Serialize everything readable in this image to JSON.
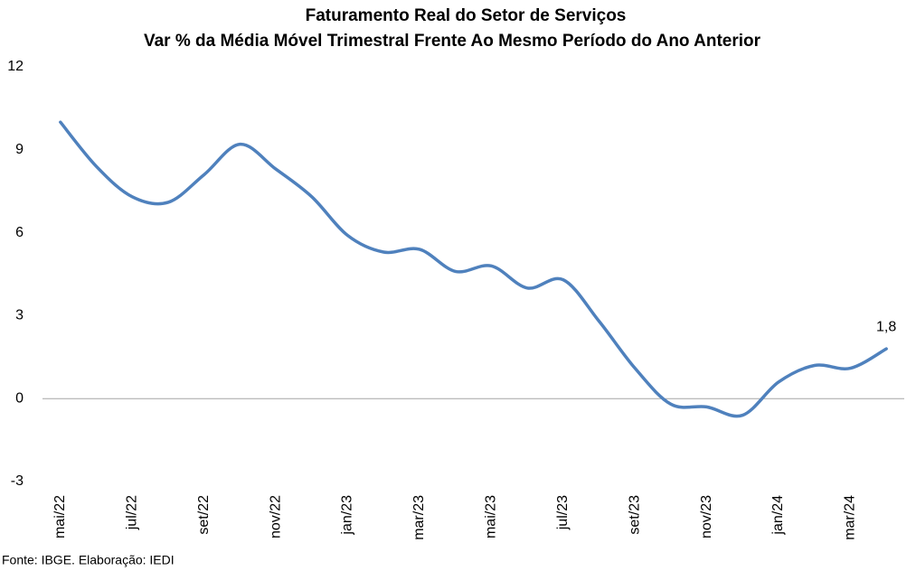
{
  "chart_data": {
    "type": "line",
    "title": "Faturamento Real do Setor de Serviços",
    "subtitle": "Var % da Média Móvel Trimestral Frente Ao Mesmo Período do Ano Anterior",
    "source": "Fonte: IBGE. Elaboração: IEDI",
    "categories": [
      "mai/22",
      null,
      "jul/22",
      null,
      "set/22",
      null,
      "nov/22",
      null,
      "jan/23",
      null,
      "mar/23",
      null,
      "mai/23",
      null,
      "jul/23",
      null,
      "set/23",
      null,
      "nov/23",
      null,
      "jan/24",
      null,
      "mar/24",
      null
    ],
    "series": [
      {
        "color": "#4f81bd",
        "values": [
          10.0,
          8.4,
          7.3,
          7.1,
          8.1,
          9.2,
          8.3,
          7.3,
          5.9,
          5.3,
          5.4,
          4.6,
          4.8,
          4.0,
          4.3,
          2.8,
          1.1,
          -0.2,
          -0.3,
          -0.6,
          0.6,
          1.2,
          1.1,
          1.8
        ],
        "value_labels": [
          null,
          null,
          null,
          null,
          null,
          null,
          null,
          null,
          null,
          null,
          null,
          null,
          null,
          null,
          null,
          null,
          null,
          null,
          null,
          null,
          null,
          null,
          null,
          "1,8"
        ]
      }
    ],
    "ylim": [
      -3,
      12
    ],
    "yticks": [
      -3,
      0,
      3,
      6,
      9,
      12
    ],
    "grid": false
  }
}
